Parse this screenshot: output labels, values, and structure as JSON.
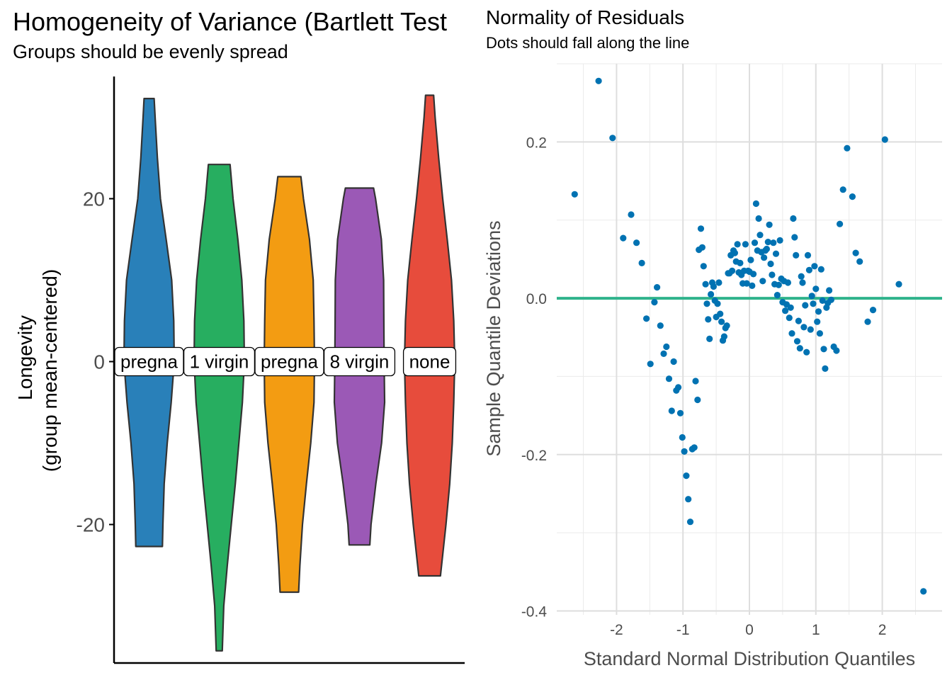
{
  "left_panel": {
    "title": "Homogeneity of Variance (Bartlett Test",
    "subtitle": "Groups should be evenly spread"
  },
  "right_panel": {
    "title": "Normality of Residuals",
    "subtitle": "Dots should fall along the line"
  },
  "chart_data": [
    {
      "type": "violin",
      "ylabel_line1": "Longevity",
      "ylabel_line2": "(group mean-centered)",
      "ylim": [
        -37,
        35
      ],
      "yticks": [
        -20,
        0,
        20
      ],
      "grid": false,
      "colors": [
        "#2980b9",
        "#27ae60",
        "#f39c12",
        "#9b59b6",
        "#e74c3c"
      ],
      "groups": [
        {
          "label": "pregna",
          "color": "#2980b9",
          "min": -22.7,
          "max": 32.3,
          "profile": [
            [
              -22.7,
              0.53
            ],
            [
              -20,
              0.55
            ],
            [
              -15,
              0.6
            ],
            [
              -10,
              0.72
            ],
            [
              -5,
              0.88
            ],
            [
              0,
              1.0
            ],
            [
              5,
              0.98
            ],
            [
              10,
              0.9
            ],
            [
              15,
              0.68
            ],
            [
              20,
              0.45
            ],
            [
              25,
              0.33
            ],
            [
              30,
              0.24
            ],
            [
              32.3,
              0.2
            ]
          ]
        },
        {
          "label": "1 virgin",
          "color": "#27ae60",
          "min": -35.5,
          "max": 24.2,
          "profile": [
            [
              -35.5,
              0.12
            ],
            [
              -30,
              0.18
            ],
            [
              -25,
              0.32
            ],
            [
              -20,
              0.48
            ],
            [
              -15,
              0.64
            ],
            [
              -10,
              0.78
            ],
            [
              -5,
              0.92
            ],
            [
              0,
              1.0
            ],
            [
              5,
              0.98
            ],
            [
              10,
              0.9
            ],
            [
              15,
              0.74
            ],
            [
              20,
              0.55
            ],
            [
              24.2,
              0.43
            ]
          ]
        },
        {
          "label": "pregna",
          "color": "#f39c12",
          "min": -28.3,
          "max": 22.7,
          "profile": [
            [
              -28.3,
              0.37
            ],
            [
              -25,
              0.42
            ],
            [
              -20,
              0.52
            ],
            [
              -15,
              0.68
            ],
            [
              -10,
              0.85
            ],
            [
              -5,
              0.98
            ],
            [
              0,
              1.0
            ],
            [
              5,
              0.98
            ],
            [
              10,
              0.95
            ],
            [
              15,
              0.8
            ],
            [
              20,
              0.56
            ],
            [
              22.7,
              0.46
            ]
          ]
        },
        {
          "label": "8 virgin",
          "color": "#9b59b6",
          "min": -22.5,
          "max": 21.3,
          "profile": [
            [
              -22.5,
              0.41
            ],
            [
              -20,
              0.46
            ],
            [
              -15,
              0.65
            ],
            [
              -10,
              0.88
            ],
            [
              -5,
              1.0
            ],
            [
              0,
              0.98
            ],
            [
              5,
              0.97
            ],
            [
              10,
              0.96
            ],
            [
              15,
              0.87
            ],
            [
              20,
              0.64
            ],
            [
              21.3,
              0.56
            ]
          ]
        },
        {
          "label": "none",
          "color": "#e74c3c",
          "min": -26.3,
          "max": 32.7,
          "profile": [
            [
              -26.3,
              0.43
            ],
            [
              -20,
              0.65
            ],
            [
              -15,
              0.8
            ],
            [
              -10,
              0.9
            ],
            [
              -5,
              0.96
            ],
            [
              0,
              1.0
            ],
            [
              5,
              0.96
            ],
            [
              10,
              0.87
            ],
            [
              15,
              0.7
            ],
            [
              20,
              0.52
            ],
            [
              25,
              0.36
            ],
            [
              30,
              0.22
            ],
            [
              32.7,
              0.16
            ]
          ]
        }
      ]
    },
    {
      "type": "scatter",
      "xlabel": "Standard Normal Distribution Quantiles",
      "ylabel": "Sample Quantile Deviations",
      "xlim": [
        -2.9,
        2.9
      ],
      "ylim": [
        -0.405,
        0.3
      ],
      "xticks": [
        -2,
        -1,
        0,
        1,
        2
      ],
      "yticks": [
        -0.4,
        -0.2,
        0.0,
        0.2
      ],
      "xtick_labels": [
        "-2",
        "-1",
        "0",
        "1",
        "2"
      ],
      "ytick_labels": [
        "-0.4",
        "-0.2",
        "0.0",
        "0.2"
      ],
      "grid": true,
      "point_color": "#0072b2",
      "reference_line": {
        "y": 0,
        "color": "#2fb38b"
      },
      "points": [
        [
          -2.63,
          0.133
        ],
        [
          -2.27,
          0.278
        ],
        [
          -2.06,
          0.205
        ],
        [
          -1.9,
          0.077
        ],
        [
          -1.78,
          0.107
        ],
        [
          -1.7,
          0.071
        ],
        [
          -1.62,
          0.045
        ],
        [
          -1.55,
          -0.026
        ],
        [
          -1.49,
          -0.084
        ],
        [
          -1.43,
          -0.005
        ],
        [
          -1.39,
          0.014
        ],
        [
          -1.34,
          -0.035
        ],
        [
          -1.29,
          -0.071
        ],
        [
          -1.25,
          -0.062
        ],
        [
          -1.21,
          -0.103
        ],
        [
          -1.17,
          -0.144
        ],
        [
          -1.14,
          -0.081
        ],
        [
          -1.1,
          -0.118
        ],
        [
          -1.07,
          -0.114
        ],
        [
          -1.04,
          -0.147
        ],
        [
          -1.01,
          -0.178
        ],
        [
          -0.98,
          -0.196
        ],
        [
          -0.95,
          -0.227
        ],
        [
          -0.92,
          -0.257
        ],
        [
          -0.89,
          -0.286
        ],
        [
          -0.86,
          -0.193
        ],
        [
          -0.83,
          -0.191
        ],
        [
          -0.81,
          -0.106
        ],
        [
          -0.78,
          -0.13
        ],
        [
          -0.76,
          0.062
        ],
        [
          -0.73,
          0.089
        ],
        [
          -0.71,
          0.065
        ],
        [
          -0.69,
          0.041
        ],
        [
          -0.66,
          0.018
        ],
        [
          -0.64,
          -0.007
        ],
        [
          -0.62,
          -0.027
        ],
        [
          -0.6,
          -0.052
        ],
        [
          -0.58,
          0.005
        ],
        [
          -0.56,
          0.02
        ],
        [
          -0.54,
          0.015
        ],
        [
          -0.52,
          -0.003
        ],
        [
          -0.5,
          -0.024
        ],
        [
          -0.48,
          -0.007
        ],
        [
          -0.46,
          0.02
        ],
        [
          -0.44,
          -0.02
        ],
        [
          -0.42,
          -0.03
        ],
        [
          -0.4,
          -0.054
        ],
        [
          -0.38,
          -0.049
        ],
        [
          -0.36,
          -0.038
        ],
        [
          -0.34,
          -0.035
        ],
        [
          -0.32,
          0.032
        ],
        [
          -0.3,
          0.032
        ],
        [
          -0.28,
          0.055
        ],
        [
          -0.26,
          0.035
        ],
        [
          -0.24,
          0.061
        ],
        [
          -0.22,
          0.058
        ],
        [
          -0.2,
          0.047
        ],
        [
          -0.18,
          0.069
        ],
        [
          -0.16,
          0.033
        ],
        [
          -0.14,
          0.045
        ],
        [
          -0.12,
          0.03
        ],
        [
          -0.1,
          0.019
        ],
        [
          -0.08,
          0.035
        ],
        [
          -0.06,
          0.069
        ],
        [
          -0.04,
          0.019
        ],
        [
          -0.02,
          0.035
        ],
        [
          0.0,
          0.034
        ],
        [
          0.02,
          0.049
        ],
        [
          0.04,
          0.016
        ],
        [
          0.06,
          0.031
        ],
        [
          0.08,
          0.071
        ],
        [
          0.1,
          0.121
        ],
        [
          0.12,
          0.061
        ],
        [
          0.14,
          0.102
        ],
        [
          0.16,
          0.081
        ],
        [
          0.18,
          0.059
        ],
        [
          0.2,
          0.022
        ],
        [
          0.22,
          0.052
        ],
        [
          0.24,
          0.061
        ],
        [
          0.26,
          0.063
        ],
        [
          0.28,
          0.072
        ],
        [
          0.3,
          0.094
        ],
        [
          0.32,
          0.044
        ],
        [
          0.34,
          0.03
        ],
        [
          0.36,
          0.071
        ],
        [
          0.38,
          0.018
        ],
        [
          0.4,
          0.057
        ],
        [
          0.42,
          0.004
        ],
        [
          0.44,
          0.017
        ],
        [
          0.46,
          0.074
        ],
        [
          0.48,
          0.025
        ],
        [
          0.5,
          -0.005
        ],
        [
          0.52,
          0.022
        ],
        [
          0.54,
          -0.016
        ],
        [
          0.56,
          -0.008
        ],
        [
          0.58,
          0.02
        ],
        [
          0.6,
          -0.025
        ],
        [
          0.62,
          -0.012
        ],
        [
          0.64,
          -0.045
        ],
        [
          0.66,
          0.102
        ],
        [
          0.68,
          0.078
        ],
        [
          0.7,
          0.055
        ],
        [
          0.72,
          -0.055
        ],
        [
          0.74,
          -0.029
        ],
        [
          0.76,
          -0.064
        ],
        [
          0.78,
          0.028
        ],
        [
          0.8,
          0.02
        ],
        [
          0.82,
          -0.037
        ],
        [
          0.84,
          -0.009
        ],
        [
          0.86,
          -0.069
        ],
        [
          0.88,
          0.055
        ],
        [
          0.9,
          0.036
        ],
        [
          0.92,
          -0.04
        ],
        [
          0.94,
          0.003
        ],
        [
          0.96,
          -0.007
        ],
        [
          0.98,
          0.041
        ],
        [
          1.0,
          0.012
        ],
        [
          1.02,
          -0.03
        ],
        [
          1.04,
          -0.017
        ],
        [
          1.06,
          -0.045
        ],
        [
          1.08,
          0.037
        ],
        [
          1.1,
          -0.003
        ],
        [
          1.12,
          -0.065
        ],
        [
          1.14,
          -0.09
        ],
        [
          1.16,
          -0.012
        ],
        [
          1.18,
          -0.006
        ],
        [
          1.2,
          0.01
        ],
        [
          1.23,
          -0.002
        ],
        [
          1.27,
          -0.062
        ],
        [
          1.31,
          -0.067
        ],
        [
          1.36,
          0.095
        ],
        [
          1.41,
          0.139
        ],
        [
          1.47,
          0.192
        ],
        [
          1.55,
          0.13
        ],
        [
          1.6,
          0.058
        ],
        [
          1.66,
          0.047
        ],
        [
          1.78,
          -0.03
        ],
        [
          1.86,
          -0.015
        ],
        [
          2.04,
          0.203
        ],
        [
          2.25,
          0.018
        ],
        [
          2.62,
          -0.375
        ]
      ]
    }
  ]
}
